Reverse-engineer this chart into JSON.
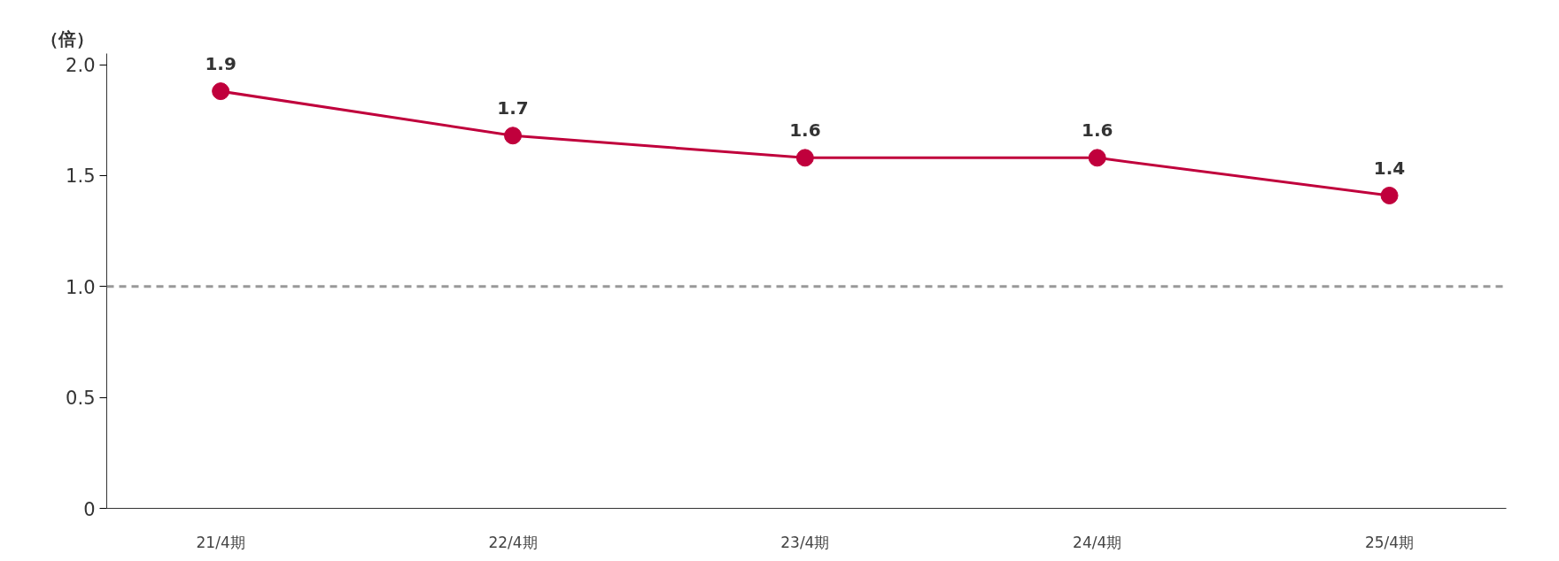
{
  "chart_data": {
    "type": "line",
    "ylabel": "（倍）",
    "categories": [
      "21/4期",
      "22/4期",
      "23/4期",
      "24/4期",
      "25/4期"
    ],
    "series": [
      {
        "color": "#c0003c",
        "values": [
          1.88,
          1.68,
          1.58,
          1.58,
          1.41
        ],
        "value_labels": [
          "1.9",
          "1.7",
          "1.6",
          "1.6",
          "1.4"
        ]
      }
    ],
    "ylim": [
      0,
      2.05
    ],
    "yticks": [
      0,
      {
        "value": 0.5,
        "label": "0.5"
      },
      {
        "value": 1.0,
        "label": "1.0"
      },
      {
        "value": 1.5,
        "label": "1.5"
      },
      {
        "value": 2.0,
        "label": "2.0"
      }
    ],
    "ref_lines": [
      {
        "axis": "y",
        "value": 1.0,
        "color": "#999999",
        "line_style": "dashed"
      }
    ],
    "grid": false,
    "marker": "circle",
    "line_style": "solid"
  }
}
